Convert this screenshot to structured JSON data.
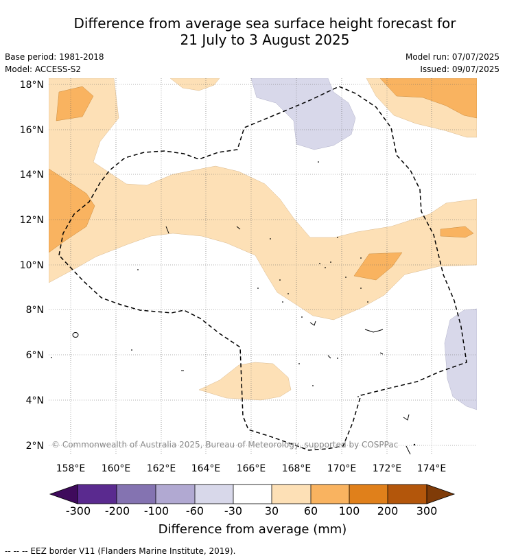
{
  "title_line1": "Difference from average sea surface height forecast for",
  "title_line2": "21 July to 3 August 2025",
  "meta": {
    "base_period": "Base period: 1981-2018",
    "model": "Model: ACCESS-S2",
    "model_run": "Model run: 07/07/2025",
    "issued": "Issued: 09/07/2025"
  },
  "map": {
    "lat_labels": [
      "18°N",
      "16°N",
      "14°N",
      "12°N",
      "10°N",
      "8°N",
      "6°N",
      "4°N",
      "2°N"
    ],
    "lon_labels": [
      "158°E",
      "160°E",
      "162°E",
      "164°E",
      "166°E",
      "168°E",
      "170°E",
      "172°E",
      "174°E"
    ],
    "copyright": "© Commonwealth of Australia 2025, Bureau of Meteorology, supported by COSPPac",
    "colors": {
      "below_60": "#d8d8ea",
      "range_30_60": "#fde0b6",
      "range_60_100": "#f9b360",
      "land_outline": "#000000",
      "eez_border": "#000000",
      "grid": "#555555"
    }
  },
  "colorbar": {
    "label": "Difference from average (mm)",
    "tick_labels": [
      "-300",
      "-200",
      "-100",
      "-60",
      "-30",
      "30",
      "60",
      "100",
      "200",
      "300"
    ],
    "colors": [
      "#3f0a5c",
      "#5a2a8f",
      "#8473b1",
      "#b1a9d2",
      "#d8d8ea",
      "#ffffff",
      "#fde0b6",
      "#f9b360",
      "#e0801b",
      "#b3560b",
      "#7f3b08"
    ]
  },
  "footnote": "--  --  -- EEZ border V11 (Flanders Marine Institute, 2019)."
}
